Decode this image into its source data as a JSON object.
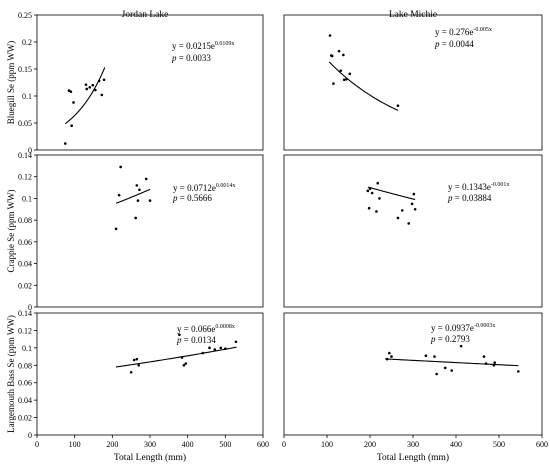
{
  "chart_data": [
    {
      "type": "scatter",
      "panel_title": "Jordan Lake",
      "ylabel": "Bluegill Se (ppm WW)",
      "xlabel": "",
      "xlim": [
        0,
        600
      ],
      "ylim": [
        0,
        0.25
      ],
      "x_ticks": [],
      "y_ticks": [
        "0",
        "0.05",
        "0.1",
        "0.15",
        "0.2",
        "0.25"
      ],
      "equation": {
        "prefix": "y = 0.0215e",
        "exponent": "0.0109x"
      },
      "p_value": "0.0033",
      "fit": {
        "a": 0.0215,
        "b": 0.0109,
        "x_range": [
          75,
          180
        ]
      },
      "points": [
        {
          "x": 75,
          "y": 0.012
        },
        {
          "x": 85,
          "y": 0.11
        },
        {
          "x": 90,
          "y": 0.108
        },
        {
          "x": 92,
          "y": 0.045
        },
        {
          "x": 97,
          "y": 0.088
        },
        {
          "x": 130,
          "y": 0.121
        },
        {
          "x": 132,
          "y": 0.113
        },
        {
          "x": 140,
          "y": 0.116
        },
        {
          "x": 148,
          "y": 0.12
        },
        {
          "x": 155,
          "y": 0.111
        },
        {
          "x": 165,
          "y": 0.128
        },
        {
          "x": 172,
          "y": 0.102
        },
        {
          "x": 178,
          "y": 0.13
        }
      ]
    },
    {
      "type": "scatter",
      "panel_title": "Lake Michie",
      "ylabel": "",
      "xlabel": "",
      "xlim": [
        0,
        600
      ],
      "ylim": [
        0,
        0.25
      ],
      "x_ticks": [],
      "y_ticks": [],
      "equation": {
        "prefix": "y = 0.276e",
        "exponent": "-0.005x"
      },
      "p_value": "0.0044",
      "fit": {
        "a": 0.276,
        "b": -0.005,
        "x_range": [
          105,
          265
        ]
      },
      "points": [
        {
          "x": 107,
          "y": 0.212
        },
        {
          "x": 110,
          "y": 0.175
        },
        {
          "x": 112,
          "y": 0.174
        },
        {
          "x": 115,
          "y": 0.123
        },
        {
          "x": 128,
          "y": 0.183
        },
        {
          "x": 132,
          "y": 0.147
        },
        {
          "x": 138,
          "y": 0.176
        },
        {
          "x": 140,
          "y": 0.13
        },
        {
          "x": 145,
          "y": 0.131
        },
        {
          "x": 153,
          "y": 0.141
        },
        {
          "x": 265,
          "y": 0.082
        }
      ]
    },
    {
      "type": "scatter",
      "panel_title": "",
      "ylabel": "Crappie Se (ppm WW)",
      "xlabel": "",
      "xlim": [
        0,
        600
      ],
      "ylim": [
        0,
        0.14
      ],
      "x_ticks": [],
      "y_ticks": [
        "0",
        "0.02",
        "0.04",
        "0.06",
        "0.08",
        "0.1",
        "0.12",
        "0.14"
      ],
      "equation": {
        "prefix": "y = 0.0712e",
        "exponent": "0.0014x"
      },
      "p_value": "0.5666",
      "fit": {
        "a": 0.0712,
        "b": 0.0014,
        "x_range": [
          210,
          300
        ]
      },
      "points": [
        {
          "x": 210,
          "y": 0.072
        },
        {
          "x": 218,
          "y": 0.103
        },
        {
          "x": 222,
          "y": 0.129
        },
        {
          "x": 262,
          "y": 0.082
        },
        {
          "x": 265,
          "y": 0.112
        },
        {
          "x": 268,
          "y": 0.098
        },
        {
          "x": 272,
          "y": 0.108
        },
        {
          "x": 290,
          "y": 0.118
        },
        {
          "x": 300,
          "y": 0.098
        }
      ]
    },
    {
      "type": "scatter",
      "panel_title": "",
      "ylabel": "",
      "xlabel": "",
      "xlim": [
        0,
        600
      ],
      "ylim": [
        0,
        0.14
      ],
      "x_ticks": [],
      "y_ticks": [],
      "equation": {
        "prefix": "y = 0.1343e",
        "exponent": "-0.001x"
      },
      "p_value": "0.03884",
      "fit": {
        "a": 0.1343,
        "b": -0.001,
        "x_range": [
          195,
          305
        ]
      },
      "points": [
        {
          "x": 195,
          "y": 0.107
        },
        {
          "x": 198,
          "y": 0.091
        },
        {
          "x": 200,
          "y": 0.109
        },
        {
          "x": 205,
          "y": 0.105
        },
        {
          "x": 215,
          "y": 0.088
        },
        {
          "x": 218,
          "y": 0.114
        },
        {
          "x": 222,
          "y": 0.1
        },
        {
          "x": 265,
          "y": 0.082
        },
        {
          "x": 275,
          "y": 0.089
        },
        {
          "x": 290,
          "y": 0.077
        },
        {
          "x": 298,
          "y": 0.095
        },
        {
          "x": 302,
          "y": 0.104
        },
        {
          "x": 305,
          "y": 0.09
        }
      ]
    },
    {
      "type": "scatter",
      "panel_title": "",
      "ylabel": "Largemouth Bass Se (ppm WW)",
      "xlabel": "Total Length (mm)",
      "xlim": [
        0,
        600
      ],
      "ylim": [
        0,
        0.14
      ],
      "x_ticks": [
        "0",
        "100",
        "200",
        "300",
        "400",
        "500",
        "600"
      ],
      "y_ticks": [
        "0",
        "0.02",
        "0.04",
        "0.06",
        "0.08",
        "0.1",
        "0.12",
        "0.14"
      ],
      "equation": {
        "prefix": "y = 0.066e",
        "exponent": "0.0008x"
      },
      "p_value": "0.0134",
      "fit": {
        "a": 0.066,
        "b": 0.0008,
        "x_range": [
          210,
          530
        ]
      },
      "points": [
        {
          "x": 250,
          "y": 0.072
        },
        {
          "x": 258,
          "y": 0.086
        },
        {
          "x": 265,
          "y": 0.087
        },
        {
          "x": 270,
          "y": 0.08
        },
        {
          "x": 378,
          "y": 0.115
        },
        {
          "x": 385,
          "y": 0.089
        },
        {
          "x": 390,
          "y": 0.08
        },
        {
          "x": 395,
          "y": 0.082
        },
        {
          "x": 440,
          "y": 0.094
        },
        {
          "x": 458,
          "y": 0.1
        },
        {
          "x": 472,
          "y": 0.098
        },
        {
          "x": 488,
          "y": 0.1
        },
        {
          "x": 500,
          "y": 0.099
        },
        {
          "x": 528,
          "y": 0.107
        }
      ]
    },
    {
      "type": "scatter",
      "panel_title": "",
      "ylabel": "",
      "xlabel": "Total Length (mm)",
      "xlim": [
        0,
        600
      ],
      "ylim": [
        0,
        0.14
      ],
      "x_ticks": [
        "0",
        "100",
        "200",
        "300",
        "400",
        "500",
        "600"
      ],
      "y_ticks": [],
      "equation": {
        "prefix": "y = 0.0937e",
        "exponent": "-0.0003x"
      },
      "p_value": "0.2793",
      "fit": {
        "a": 0.0937,
        "b": -0.0003,
        "x_range": [
          235,
          545
        ]
      },
      "points": [
        {
          "x": 240,
          "y": 0.087
        },
        {
          "x": 245,
          "y": 0.094
        },
        {
          "x": 250,
          "y": 0.09
        },
        {
          "x": 330,
          "y": 0.091
        },
        {
          "x": 350,
          "y": 0.09
        },
        {
          "x": 355,
          "y": 0.07
        },
        {
          "x": 375,
          "y": 0.077
        },
        {
          "x": 390,
          "y": 0.074
        },
        {
          "x": 412,
          "y": 0.102
        },
        {
          "x": 465,
          "y": 0.09
        },
        {
          "x": 470,
          "y": 0.082
        },
        {
          "x": 488,
          "y": 0.08
        },
        {
          "x": 490,
          "y": 0.083
        },
        {
          "x": 545,
          "y": 0.073
        }
      ]
    }
  ]
}
